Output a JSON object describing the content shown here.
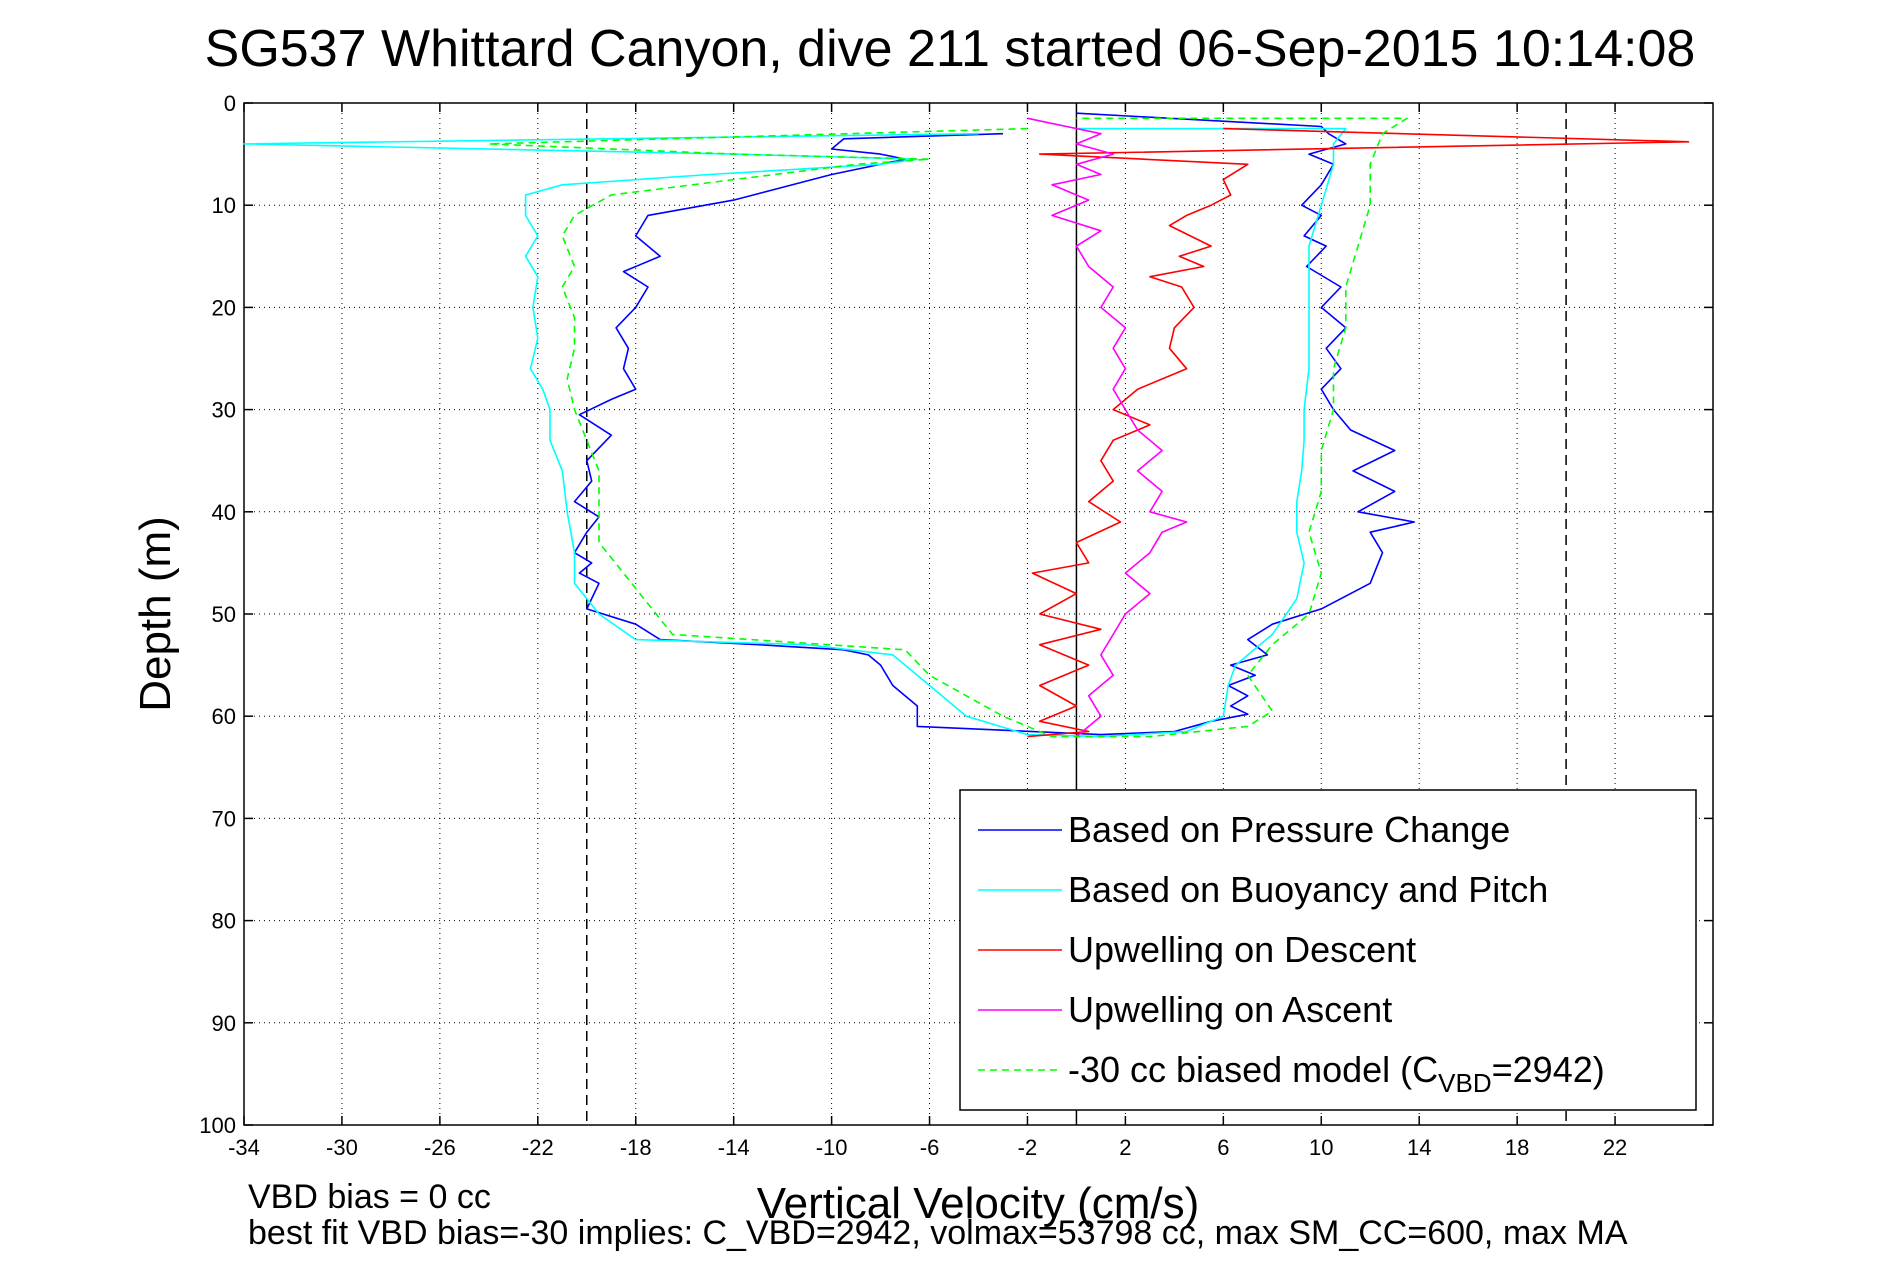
{
  "chart_data": {
    "type": "line",
    "title": "SG537 Whittard Canyon, dive 211 started 06-Sep-2015 10:14:08",
    "xlabel": "Vertical Velocity (cm/s)",
    "ylabel": "Depth (m)",
    "xlim": [
      -34,
      26
    ],
    "ylim": [
      0,
      100
    ],
    "y_reversed": true,
    "x_ticks": [
      -34,
      -30,
      -26,
      -22,
      -18,
      -14,
      -10,
      -6,
      -2,
      2,
      6,
      10,
      14,
      18,
      22
    ],
    "y_ticks": [
      0,
      10,
      20,
      30,
      40,
      50,
      60,
      70,
      80,
      90,
      100
    ],
    "grid": true,
    "legend_position": "lower-right",
    "reference_lines": {
      "solid_x": 0,
      "dashed_x": [
        -20,
        20
      ]
    },
    "notes": [
      "VBD bias = 0 cc",
      "best fit VBD bias=-30 implies: C_VBD=2942, volmax=53798 cc, max SM_CC=600, max MA"
    ],
    "series": [
      {
        "name": "Based on Pressure Change",
        "color": "#0000ff",
        "dash": "solid",
        "points": [
          [
            0,
            1
          ],
          [
            10,
            2.3
          ],
          [
            10.3,
            3
          ],
          [
            11,
            4
          ],
          [
            9.5,
            5
          ],
          [
            10.5,
            6
          ],
          [
            10,
            8
          ],
          [
            9.2,
            10
          ],
          [
            10,
            11
          ],
          [
            9.3,
            13
          ],
          [
            10.2,
            14
          ],
          [
            9.4,
            16
          ],
          [
            10.8,
            18
          ],
          [
            10,
            20
          ],
          [
            11,
            22
          ],
          [
            10.2,
            24
          ],
          [
            10.8,
            26
          ],
          [
            10,
            28
          ],
          [
            10.5,
            30
          ],
          [
            11.2,
            32
          ],
          [
            13,
            34
          ],
          [
            11.3,
            36
          ],
          [
            13,
            38
          ],
          [
            11.5,
            40
          ],
          [
            13.8,
            41
          ],
          [
            12,
            42
          ],
          [
            12.5,
            44
          ],
          [
            12,
            47
          ],
          [
            10,
            49.5
          ],
          [
            8,
            51
          ],
          [
            7,
            52.5
          ],
          [
            7.8,
            54
          ],
          [
            6.3,
            55
          ],
          [
            7.3,
            56
          ],
          [
            6.2,
            57
          ],
          [
            7,
            58
          ],
          [
            6.3,
            59
          ],
          [
            7,
            59.8
          ],
          [
            5.5,
            60.5
          ],
          [
            4,
            61.5
          ],
          [
            1,
            61.8
          ],
          [
            -6.5,
            61
          ],
          [
            -6.5,
            59
          ],
          [
            -7.5,
            57
          ],
          [
            -8,
            55
          ],
          [
            -8.5,
            54
          ],
          [
            -9.5,
            53.5
          ],
          [
            -13,
            53
          ],
          [
            -17,
            52.5
          ],
          [
            -18,
            51
          ],
          [
            -20,
            49.5
          ],
          [
            -19.5,
            47
          ],
          [
            -20.3,
            46
          ],
          [
            -19.8,
            45
          ],
          [
            -20.5,
            44
          ],
          [
            -20,
            42
          ],
          [
            -19.5,
            40.5
          ],
          [
            -20.5,
            39
          ],
          [
            -19.8,
            37
          ],
          [
            -20,
            35
          ],
          [
            -19,
            32.5
          ],
          [
            -20.3,
            30.5
          ],
          [
            -19,
            29
          ],
          [
            -18,
            28
          ],
          [
            -18.5,
            26
          ],
          [
            -18.3,
            24
          ],
          [
            -18.8,
            22
          ],
          [
            -18,
            20
          ],
          [
            -17.5,
            18
          ],
          [
            -18.5,
            16.5
          ],
          [
            -17,
            15
          ],
          [
            -18,
            13
          ],
          [
            -17.5,
            11
          ],
          [
            -14,
            9.5
          ],
          [
            -10,
            7
          ],
          [
            -7,
            5.5
          ],
          [
            -8,
            5
          ],
          [
            -10,
            4.5
          ],
          [
            -9.5,
            3.5
          ],
          [
            -3,
            3
          ]
        ]
      },
      {
        "name": "Based on Buoyancy and Pitch",
        "color": "#00ffff",
        "dash": "solid",
        "points": [
          [
            -4,
            3
          ],
          [
            -34,
            4
          ],
          [
            -14,
            5
          ],
          [
            -6.5,
            5.5
          ],
          [
            -8,
            6
          ],
          [
            -15,
            7
          ],
          [
            -21,
            8
          ],
          [
            -22.5,
            9
          ],
          [
            -22.5,
            11
          ],
          [
            -22,
            13
          ],
          [
            -22.5,
            15
          ],
          [
            -22,
            17
          ],
          [
            -22.2,
            20
          ],
          [
            -22,
            23
          ],
          [
            -22.3,
            26
          ],
          [
            -21.8,
            28
          ],
          [
            -21.5,
            30
          ],
          [
            -21.5,
            33
          ],
          [
            -21,
            36
          ],
          [
            -20.8,
            40
          ],
          [
            -20.5,
            44
          ],
          [
            -20.5,
            47
          ],
          [
            -19.5,
            50
          ],
          [
            -18,
            52.5
          ],
          [
            -11,
            53
          ],
          [
            -7.5,
            54
          ],
          [
            -6.5,
            56
          ],
          [
            -5.5,
            58
          ],
          [
            -4.5,
            60
          ],
          [
            -2,
            61.8
          ],
          [
            1,
            62
          ],
          [
            4.5,
            61.5
          ],
          [
            6,
            60
          ],
          [
            6.2,
            57
          ],
          [
            6.5,
            55
          ],
          [
            8,
            52
          ],
          [
            9,
            48.5
          ],
          [
            9.3,
            45
          ],
          [
            9,
            42
          ],
          [
            9,
            39
          ],
          [
            9.2,
            36
          ],
          [
            9.3,
            33
          ],
          [
            9.3,
            30
          ],
          [
            9.5,
            26
          ],
          [
            9.5,
            22
          ],
          [
            9.5,
            18
          ],
          [
            9.5,
            14
          ],
          [
            10,
            10
          ],
          [
            10.5,
            6
          ],
          [
            10.5,
            4
          ],
          [
            11,
            2.5
          ],
          [
            0,
            2.5
          ]
        ]
      },
      {
        "name": "Upwelling on Descent",
        "color": "#ff0000",
        "dash": "solid",
        "points": [
          [
            6,
            2.5
          ],
          [
            25,
            3.8
          ],
          [
            -1.5,
            5
          ],
          [
            7,
            6
          ],
          [
            6,
            7.5
          ],
          [
            6.3,
            9
          ],
          [
            5.5,
            10
          ],
          [
            4.5,
            11
          ],
          [
            3.8,
            12
          ],
          [
            5.5,
            14
          ],
          [
            4.2,
            15
          ],
          [
            5.2,
            16
          ],
          [
            3,
            17
          ],
          [
            4.3,
            18
          ],
          [
            4.8,
            20
          ],
          [
            4,
            22
          ],
          [
            3.8,
            24
          ],
          [
            4.5,
            26
          ],
          [
            2.5,
            28
          ],
          [
            1.5,
            30
          ],
          [
            3,
            31.5
          ],
          [
            1.5,
            33
          ],
          [
            1,
            35
          ],
          [
            1.5,
            37
          ],
          [
            0.5,
            39
          ],
          [
            1.8,
            41
          ],
          [
            0,
            43
          ],
          [
            0.5,
            45
          ],
          [
            -1.8,
            46
          ],
          [
            0,
            48
          ],
          [
            -1.5,
            50
          ],
          [
            1,
            51.5
          ],
          [
            -1.5,
            53
          ],
          [
            0.5,
            55
          ],
          [
            -1.5,
            57
          ],
          [
            0,
            59
          ],
          [
            -1.5,
            60.5
          ],
          [
            0.5,
            61.5
          ],
          [
            -2,
            62
          ]
        ]
      },
      {
        "name": "Upwelling on Ascent",
        "color": "#ff00ff",
        "dash": "solid",
        "points": [
          [
            -2,
            1.5
          ],
          [
            1,
            3
          ],
          [
            0,
            4
          ],
          [
            1.5,
            5
          ],
          [
            0,
            6
          ],
          [
            1,
            7
          ],
          [
            -1,
            8
          ],
          [
            0.5,
            9.5
          ],
          [
            -1,
            11
          ],
          [
            1,
            12.5
          ],
          [
            0,
            14
          ],
          [
            0.5,
            16
          ],
          [
            1.5,
            18
          ],
          [
            1,
            20
          ],
          [
            2,
            22
          ],
          [
            1.5,
            24
          ],
          [
            2,
            26
          ],
          [
            1.5,
            28
          ],
          [
            2,
            30
          ],
          [
            2.5,
            32
          ],
          [
            3.5,
            34
          ],
          [
            2.5,
            36
          ],
          [
            3.5,
            38
          ],
          [
            3,
            40
          ],
          [
            4.5,
            41
          ],
          [
            3.5,
            42
          ],
          [
            3,
            44
          ],
          [
            2,
            46
          ],
          [
            3,
            48
          ],
          [
            2,
            50
          ],
          [
            1.5,
            52
          ],
          [
            1,
            54
          ],
          [
            1.5,
            56
          ],
          [
            0.5,
            58
          ],
          [
            1,
            60
          ],
          [
            0,
            62
          ]
        ]
      },
      {
        "name": "-30 cc biased model (C_VBD=2942)",
        "legend_text": "-30 cc biased model (C",
        "legend_subscript": "VBD",
        "legend_suffix": "=2942)",
        "color": "#00ff00",
        "dash": "dashed",
        "points": [
          [
            -2,
            2.5
          ],
          [
            -24,
            4
          ],
          [
            -14,
            5
          ],
          [
            -6,
            5.5
          ],
          [
            -9,
            6
          ],
          [
            -14,
            7.5
          ],
          [
            -19,
            9
          ],
          [
            -20.5,
            11
          ],
          [
            -21,
            13
          ],
          [
            -20.5,
            16
          ],
          [
            -21,
            18
          ],
          [
            -20.5,
            21
          ],
          [
            -20.5,
            24
          ],
          [
            -20.8,
            27
          ],
          [
            -20.5,
            30
          ],
          [
            -20,
            33
          ],
          [
            -19.5,
            36
          ],
          [
            -19.5,
            40
          ],
          [
            -19.5,
            43
          ],
          [
            -18.5,
            46
          ],
          [
            -17.5,
            49
          ],
          [
            -16.5,
            52
          ],
          [
            -7,
            53.5
          ],
          [
            -6,
            56
          ],
          [
            -4.5,
            58
          ],
          [
            -3,
            60
          ],
          [
            -1,
            62
          ],
          [
            3,
            62
          ],
          [
            7,
            61
          ],
          [
            8,
            59.5
          ],
          [
            7,
            56
          ],
          [
            8,
            53
          ],
          [
            9.5,
            50
          ],
          [
            10,
            46
          ],
          [
            9.5,
            42
          ],
          [
            10,
            38
          ],
          [
            10,
            34
          ],
          [
            10.5,
            30
          ],
          [
            10.5,
            26
          ],
          [
            11,
            22
          ],
          [
            11,
            18
          ],
          [
            11.5,
            14
          ],
          [
            12,
            10
          ],
          [
            12,
            6
          ],
          [
            12.5,
            3
          ],
          [
            13.5,
            1.5
          ],
          [
            0,
            1.5
          ]
        ]
      }
    ]
  }
}
